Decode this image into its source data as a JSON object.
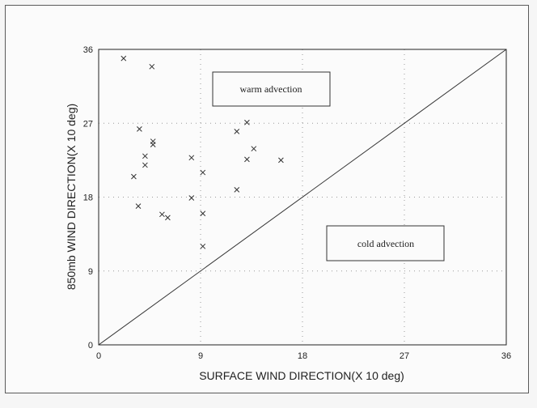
{
  "chart_data": {
    "type": "scatter",
    "xlabel": "SURFACE WIND DIRECTION(X 10 deg)",
    "ylabel": "850mb WIND DIRECTION(X 10 deg)",
    "xlim": [
      0,
      36
    ],
    "ylim": [
      0,
      36
    ],
    "xticks": [
      "0",
      "9",
      "18",
      "27",
      "36"
    ],
    "yticks": [
      "0",
      "9",
      "18",
      "27",
      "36"
    ],
    "grid": true,
    "reference_line": {
      "from": [
        0,
        0
      ],
      "to": [
        36,
        36
      ]
    },
    "annotations": [
      "warm advection",
      "cold advection"
    ],
    "points": [
      {
        "x": 2.2,
        "y": 34.9
      },
      {
        "x": 4.7,
        "y": 33.9
      },
      {
        "x": 3.6,
        "y": 26.3
      },
      {
        "x": 4.8,
        "y": 24.8
      },
      {
        "x": 4.8,
        "y": 24.4
      },
      {
        "x": 4.1,
        "y": 23.0
      },
      {
        "x": 4.1,
        "y": 21.9
      },
      {
        "x": 3.1,
        "y": 20.5
      },
      {
        "x": 3.5,
        "y": 16.9
      },
      {
        "x": 5.6,
        "y": 15.9
      },
      {
        "x": 6.1,
        "y": 15.5
      },
      {
        "x": 8.2,
        "y": 22.8
      },
      {
        "x": 8.2,
        "y": 17.9
      },
      {
        "x": 9.2,
        "y": 21.0
      },
      {
        "x": 9.2,
        "y": 16.0
      },
      {
        "x": 9.2,
        "y": 12.0
      },
      {
        "x": 12.2,
        "y": 26.0
      },
      {
        "x": 13.1,
        "y": 27.1
      },
      {
        "x": 13.7,
        "y": 23.9
      },
      {
        "x": 13.1,
        "y": 22.6
      },
      {
        "x": 12.2,
        "y": 18.9
      },
      {
        "x": 16.1,
        "y": 22.5
      }
    ]
  }
}
